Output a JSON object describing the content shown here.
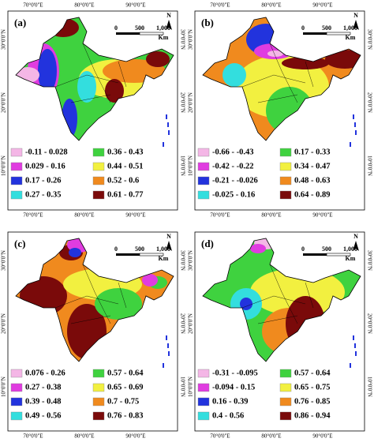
{
  "coordinates": {
    "lon": [
      "70°0'0\"E",
      "80°0'0\"E",
      "90°0'0\"E"
    ],
    "lat": [
      "30°0'0\"N",
      "20°0'0\"N",
      "10°0'0\"N"
    ]
  },
  "scale": {
    "ticks": [
      "0",
      "500",
      "1,000"
    ],
    "unit": "Km",
    "north": "N"
  },
  "panels": [
    {
      "label": "(a)",
      "legend": [
        {
          "label": "-0.11 - 0.028",
          "color": "#f4b6e6"
        },
        {
          "label": "0.029 - 0.16",
          "color": "#e03ce0"
        },
        {
          "label": "0.17 - 0.26",
          "color": "#2233dd"
        },
        {
          "label": "0.27 - 0.35",
          "color": "#33dede"
        },
        {
          "label": "0.36 - 0.43",
          "color": "#3fd23f"
        },
        {
          "label": "0.44 - 0.51",
          "color": "#f2f040"
        },
        {
          "label": "0.52 - 0.6",
          "color": "#f08a1e"
        },
        {
          "label": "0.61 - 0.77",
          "color": "#7a0a0a"
        }
      ]
    },
    {
      "label": "(b)",
      "legend": [
        {
          "label": "-0.66 - -0.43",
          "color": "#f4b6e6"
        },
        {
          "label": "-0.42 - -0.22",
          "color": "#e03ce0"
        },
        {
          "label": "-0.21 - -0.026",
          "color": "#2233dd"
        },
        {
          "label": "-0.025 - 0.16",
          "color": "#33dede"
        },
        {
          "label": "0.17 - 0.33",
          "color": "#3fd23f"
        },
        {
          "label": "0.34 - 0.47",
          "color": "#f2f040"
        },
        {
          "label": "0.48 - 0.63",
          "color": "#f08a1e"
        },
        {
          "label": "0.64 - 0.89",
          "color": "#7a0a0a"
        }
      ]
    },
    {
      "label": "(c)",
      "legend": [
        {
          "label": "0.076 - 0.26",
          "color": "#f4b6e6"
        },
        {
          "label": "0.27 - 0.38",
          "color": "#e03ce0"
        },
        {
          "label": "0.39 - 0.48",
          "color": "#2233dd"
        },
        {
          "label": "0.49 - 0.56",
          "color": "#33dede"
        },
        {
          "label": "0.57 - 0.64",
          "color": "#3fd23f"
        },
        {
          "label": "0.65 - 0.69",
          "color": "#f2f040"
        },
        {
          "label": "0.7 - 0.75",
          "color": "#f08a1e"
        },
        {
          "label": "0.76 - 0.83",
          "color": "#7a0a0a"
        }
      ]
    },
    {
      "label": "(d)",
      "legend": [
        {
          "label": "-0.31 - -0.095",
          "color": "#f4b6e6"
        },
        {
          "label": "-0.094 - 0.15",
          "color": "#e03ce0"
        },
        {
          "label": "0.16 - 0.39",
          "color": "#2233dd"
        },
        {
          "label": "0.4 - 0.56",
          "color": "#33dede"
        },
        {
          "label": "0.57 - 0.64",
          "color": "#3fd23f"
        },
        {
          "label": "0.65 - 0.75",
          "color": "#f2f040"
        },
        {
          "label": "0.76 - 0.85",
          "color": "#f08a1e"
        },
        {
          "label": "0.86 - 0.94",
          "color": "#7a0a0a"
        }
      ]
    }
  ]
}
